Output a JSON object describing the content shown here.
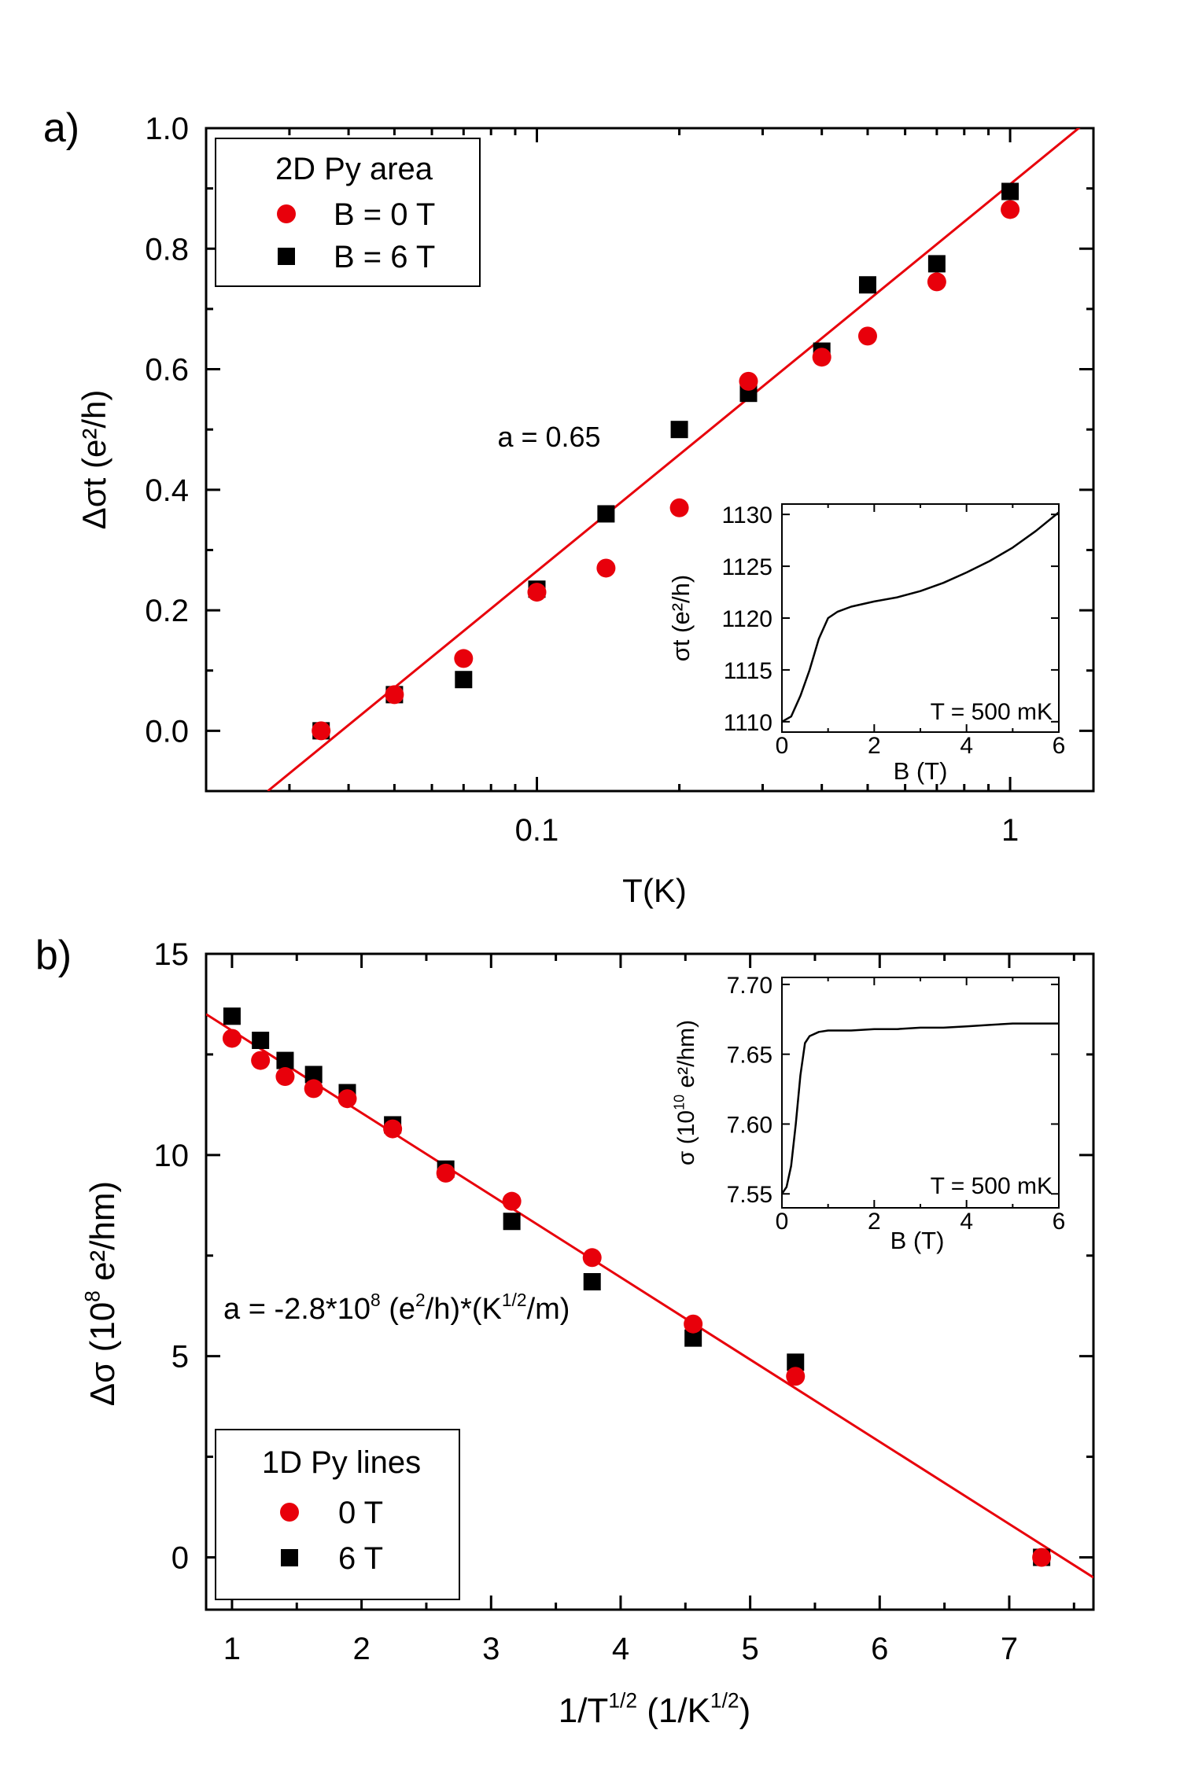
{
  "colors": {
    "red": "#e8000b",
    "black": "#000000",
    "axis": "#000000"
  },
  "chart_data": [
    {
      "type": "scatter",
      "panel_label": "a)",
      "xlabel": "T(K)",
      "ylabel": "Δσt (e²/h)",
      "xscale": "log",
      "xlim": [
        0.02,
        1.5
      ],
      "ylim": [
        -0.1,
        1.0
      ],
      "x_ticks": [
        0.1,
        1
      ],
      "x_tick_labels": [
        "0.1",
        "1"
      ],
      "y_ticks": [
        0.0,
        0.2,
        0.4,
        0.6,
        0.8,
        1.0
      ],
      "y_tick_labels": [
        "0.0",
        "0.2",
        "0.4",
        "0.6",
        "0.8",
        "1.0"
      ],
      "legend": {
        "title": "2D Py area",
        "placement": "top-left"
      },
      "annotation": "a = 0.65",
      "series": [
        {
          "name": "B = 0 T",
          "marker": "circle",
          "color": "#e8000b",
          "x": [
            0.035,
            0.05,
            0.07,
            0.1,
            0.14,
            0.2,
            0.28,
            0.4,
            0.5,
            0.7,
            1.0
          ],
          "y": [
            0.0,
            0.06,
            0.12,
            0.23,
            0.27,
            0.37,
            0.58,
            0.62,
            0.655,
            0.745,
            0.865
          ]
        },
        {
          "name": "B = 6 T",
          "marker": "square",
          "color": "#000000",
          "x": [
            0.035,
            0.05,
            0.07,
            0.1,
            0.14,
            0.2,
            0.28,
            0.4,
            0.5,
            0.7,
            1.0
          ],
          "y": [
            0.0,
            0.06,
            0.085,
            0.235,
            0.36,
            0.5,
            0.56,
            0.63,
            0.74,
            0.775,
            0.895
          ]
        }
      ],
      "fit": {
        "color": "#e8000b",
        "x": [
          0.027,
          1.5
        ],
        "y": [
          -0.1,
          1.02
        ]
      },
      "inset": {
        "type": "line",
        "xlabel": "B (T)",
        "ylabel": "σt (e²/h)",
        "xlim": [
          0,
          6
        ],
        "ylim": [
          1109,
          1131
        ],
        "x_ticks": [
          0,
          2,
          4,
          6
        ],
        "x_tick_labels": [
          "0",
          "2",
          "4",
          "6"
        ],
        "y_ticks": [
          1110,
          1115,
          1120,
          1125,
          1130
        ],
        "y_tick_labels": [
          "1110",
          "1115",
          "1120",
          "1125",
          "1130"
        ],
        "annotation": "T = 500 mK",
        "x": [
          0,
          0.2,
          0.4,
          0.6,
          0.8,
          1.0,
          1.2,
          1.5,
          2.0,
          2.5,
          3.0,
          3.5,
          4.0,
          4.5,
          5.0,
          5.5,
          6.0
        ],
        "y": [
          1110,
          1110.5,
          1112.5,
          1115,
          1118,
          1120,
          1120.6,
          1121.1,
          1121.6,
          1122.0,
          1122.6,
          1123.4,
          1124.4,
          1125.5,
          1126.8,
          1128.4,
          1130.2
        ]
      }
    },
    {
      "type": "scatter",
      "panel_label": "b)",
      "xlabel": "1/T¹ᐟ² (1/K¹ᐟ²)",
      "xlabel_parts": [
        "1/T",
        "1/2",
        " (1/K",
        "1/2",
        ")"
      ],
      "ylabel_parts": [
        "Δσ (10",
        "8",
        " e²/hm)"
      ],
      "xlim": [
        0.8,
        7.65
      ],
      "ylim": [
        -1.3,
        15
      ],
      "x_ticks": [
        1,
        2,
        3,
        4,
        5,
        6,
        7
      ],
      "x_tick_labels": [
        "1",
        "2",
        "3",
        "4",
        "5",
        "6",
        "7"
      ],
      "y_ticks": [
        0,
        5,
        10,
        15
      ],
      "y_tick_labels": [
        "0",
        "5",
        "10",
        "15"
      ],
      "legend": {
        "title": "1D Py lines",
        "placement": "bottom-left"
      },
      "annotation_parts": [
        "a = -2.8*10",
        "8",
        " (e",
        "2",
        "/h)*(K",
        "1/2",
        "/m)"
      ],
      "series": [
        {
          "name": "0 T",
          "marker": "circle",
          "color": "#e8000b",
          "x": [
            1.0,
            1.22,
            1.41,
            1.63,
            1.89,
            2.24,
            2.65,
            3.16,
            3.78,
            4.56,
            5.35,
            7.25
          ],
          "y": [
            12.9,
            12.35,
            11.95,
            11.65,
            11.4,
            10.65,
            9.55,
            8.85,
            7.45,
            5.8,
            4.5,
            0.0
          ]
        },
        {
          "name": "6 T",
          "marker": "square",
          "color": "#000000",
          "x": [
            1.0,
            1.22,
            1.41,
            1.63,
            1.89,
            2.24,
            2.65,
            3.16,
            3.78,
            4.56,
            5.35,
            7.25
          ],
          "y": [
            13.45,
            12.85,
            12.35,
            12.0,
            11.55,
            10.75,
            9.65,
            8.35,
            6.85,
            5.45,
            4.85,
            0.0
          ]
        }
      ],
      "fit": {
        "color": "#e8000b",
        "x": [
          0.8,
          7.65
        ],
        "y": [
          13.5,
          -0.5
        ]
      },
      "inset": {
        "type": "line",
        "xlabel": "B (T)",
        "ylabel_parts": [
          "σ (10",
          "10",
          " e²/hm)"
        ],
        "xlim": [
          0,
          6
        ],
        "ylim": [
          7.54,
          7.705
        ],
        "x_ticks": [
          0,
          2,
          4,
          6
        ],
        "x_tick_labels": [
          "0",
          "2",
          "4",
          "6"
        ],
        "y_ticks": [
          7.55,
          7.6,
          7.65,
          7.7
        ],
        "y_tick_labels": [
          "7.55",
          "7.60",
          "7.65",
          "7.70"
        ],
        "annotation": "T = 500 mK",
        "x": [
          0,
          0.1,
          0.2,
          0.3,
          0.4,
          0.5,
          0.6,
          0.8,
          1.0,
          1.5,
          2.0,
          2.5,
          3.0,
          3.5,
          4.0,
          4.5,
          5.0,
          5.5,
          6.0
        ],
        "y": [
          7.55,
          7.555,
          7.57,
          7.6,
          7.635,
          7.658,
          7.663,
          7.666,
          7.667,
          7.667,
          7.668,
          7.668,
          7.669,
          7.669,
          7.67,
          7.671,
          7.672,
          7.672,
          7.672
        ]
      }
    }
  ]
}
